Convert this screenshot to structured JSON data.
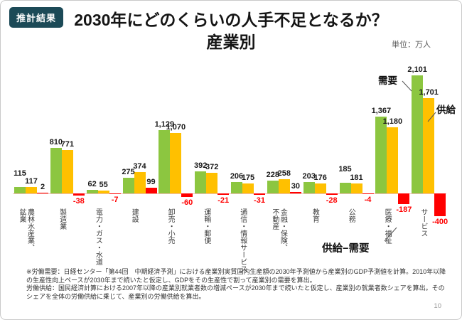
{
  "badge": "推計結果",
  "title": "2030年にどのくらいの人手不足となるか？\n産業別",
  "unit_label": "単位：万人",
  "page_number": "10",
  "legend": {
    "demand": "需要",
    "supply": "供給",
    "gap": "供給−需要"
  },
  "colors": {
    "demand": "#8CC640",
    "supply": "#FFC000",
    "gap": "#FF0000",
    "axis_line": "#F2BDB6",
    "badge_bg": "#1C4A57",
    "negative_label": "#FF0000",
    "value_label": "#1a1a1a"
  },
  "footnotes": [
    "※労働需要：日経センター「第44回　中期経済予測」における産業別実質国内生産額の2030年予測値から産業別のGDP予測値を計算。2010年以降",
    "の生産性向上ペースが2030年まで続いたと仮定し、GDPをその生産性で割って産業別の需要を算出。",
    "労働供給：国民経済計算における2007年以降の産業別就業者数の増減ペースが2030年まで続いたと仮定し、産業別の就業者数シェアを算出。その",
    "シェアを全体の労働供給に乗じて、産業別の労働供給を算出。"
  ],
  "chart_data": {
    "type": "bar",
    "title": "2030年にどのくらいの人手不足となるか？ 産業別",
    "unit": "万人",
    "xlabel": "産業",
    "ylabel": "万人",
    "ylim": [
      -450,
      2200
    ],
    "grid": false,
    "legend_position": "annotated-callouts",
    "categories": [
      "農林水産業、\n鉱業",
      "製造業",
      "電力・ガス・水道",
      "建設",
      "卸売・小売",
      "運輸・郵便",
      "通信・情報サービス",
      "金融・保険、\n不動産",
      "教育",
      "公務",
      "医療・福祉",
      "サービス"
    ],
    "series": [
      {
        "name": "需要",
        "color": "#8CC640",
        "values": [
          115,
          810,
          62,
          275,
          1129,
          392,
          206,
          228,
          203,
          185,
          1367,
          2101
        ]
      },
      {
        "name": "供給",
        "color": "#FFC000",
        "values": [
          117,
          771,
          55,
          374,
          1070,
          372,
          175,
          258,
          176,
          181,
          1180,
          1701
        ]
      },
      {
        "name": "供給−需要",
        "color": "#FF0000",
        "values": [
          2,
          -38,
          -7,
          99,
          -60,
          -21,
          -31,
          30,
          -28,
          -4,
          -187,
          -400
        ]
      }
    ]
  }
}
